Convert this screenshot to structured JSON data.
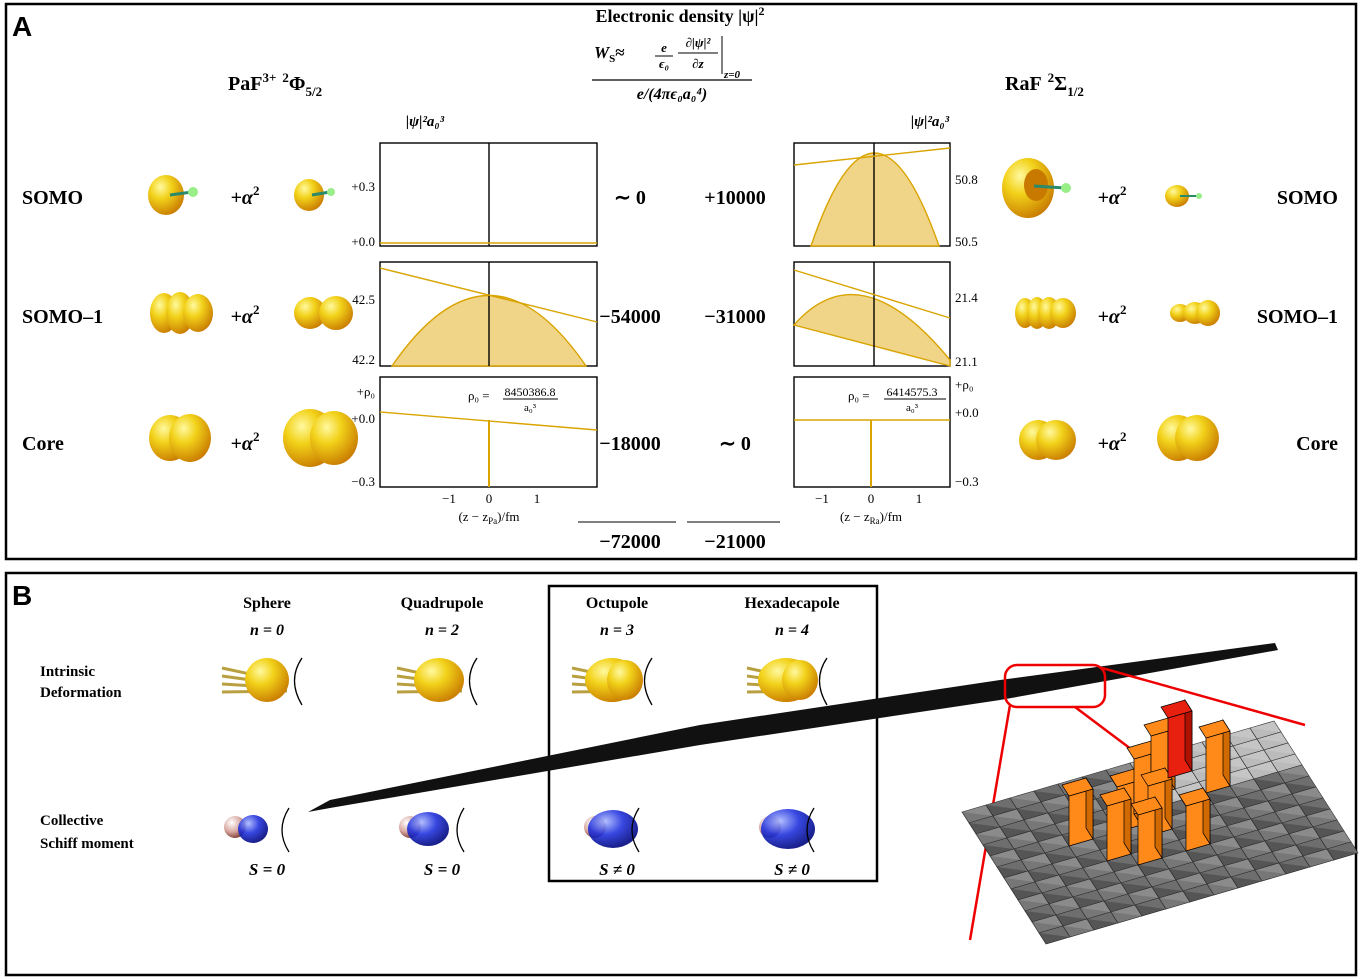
{
  "panel_a": {
    "label": "A",
    "title": "Electronic density |ψ|",
    "title_exp": "2",
    "formula": {
      "lhs": "W",
      "lhs_sub": "S",
      "approx": "≈",
      "num": "e",
      "den": "ϵ₀",
      "dnum": "∂|ψ|²",
      "dden": "∂z",
      "eval": "z=0",
      "norm": "e/(4πϵ₀a₀⁴)"
    },
    "left_species": {
      "name": "PaF",
      "charge": "3+",
      "mult": "2",
      "term": "Φ",
      "j": "5/2"
    },
    "right_species": {
      "name": "RaF",
      "mult": "2",
      "term": "Σ",
      "j": "1/2"
    },
    "density_axis_label": "|ψ|²a₀³",
    "alpha": "+α",
    "alpha_exp": "2",
    "rows": [
      {
        "orbital": "SOMO",
        "left_ws": "∼ 0",
        "right_ws": "+10000",
        "left_yticks": [
          "+0.3",
          "+0.0"
        ],
        "right_yticks": [
          "50.8",
          "50.5"
        ]
      },
      {
        "orbital": "SOMO–1",
        "left_ws": "−54000",
        "right_ws": "−31000",
        "left_yticks": [
          "42.5",
          "42.2"
        ],
        "right_yticks": [
          "21.4",
          "21.1"
        ]
      },
      {
        "orbital": "Core",
        "left_ws": "−18000",
        "right_ws": "∼ 0",
        "left_yticks": [
          "+ρ₀",
          "+0.0",
          "−0.3"
        ],
        "right_yticks": [
          "+ρ₀",
          "+0.0",
          "−0.3"
        ]
      }
    ],
    "left_rho": {
      "lhs": "ρ₀ =",
      "num": "8450386.8",
      "den": "a₀³"
    },
    "right_rho": {
      "lhs": "ρ₀ =",
      "num": "6414575.3",
      "den": "a₀³"
    },
    "xticks": [
      "−1",
      "0",
      "1"
    ],
    "left_xlabel": {
      "pre": "(z − z",
      "sub": "Pa",
      "post": ")/fm"
    },
    "right_xlabel": {
      "pre": "(z − z",
      "sub": "Ra",
      "post": ")/fm"
    },
    "left_total": "−72000",
    "right_total": "−21000"
  },
  "panel_b": {
    "label": "B",
    "columns": [
      {
        "name": "Sphere",
        "n": "n = 0",
        "schiff": "S = 0"
      },
      {
        "name": "Quadrupole",
        "n": "n = 2",
        "schiff": "S = 0"
      },
      {
        "name": "Octupole",
        "n": "n = 3",
        "schiff": "S ≠ 0"
      },
      {
        "name": "Hexadecapole",
        "n": "n = 4",
        "schiff": "S ≠ 0"
      }
    ],
    "rows": [
      [
        "Intrinsic",
        "Deformation"
      ],
      [
        "Collective",
        "Schiff moment"
      ]
    ]
  }
}
